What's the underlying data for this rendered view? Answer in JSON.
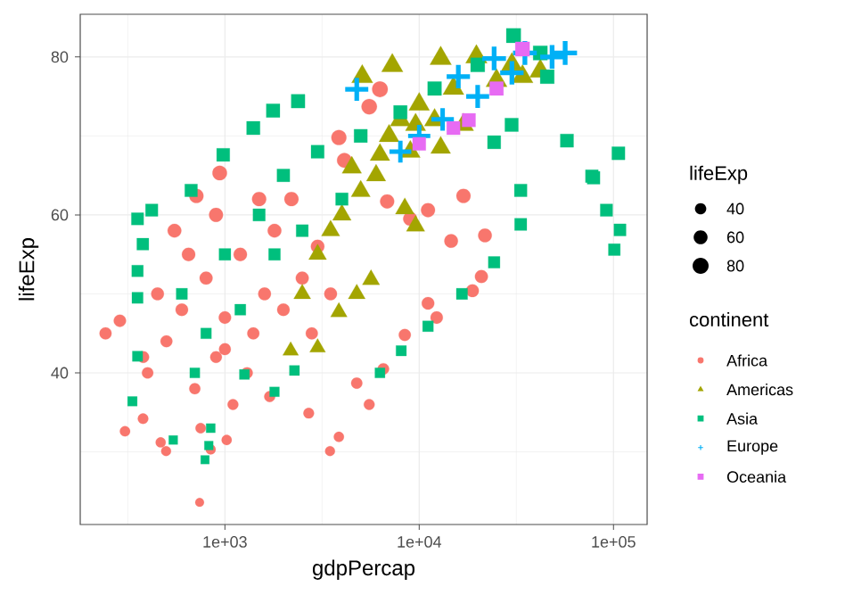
{
  "chart_data": {
    "type": "bubble",
    "xlabel": "gdpPercap",
    "ylabel": "lifeExp",
    "legend_title": "continent",
    "annotations": [
      "lifeExp"
    ],
    "log": "x",
    "grid": true,
    "legend": "right",
    "size_legend": [
      40,
      60,
      80
    ],
    "xlim": [
      180,
      149000
    ],
    "ylim": [
      20.8,
      85.4
    ],
    "xticks": [
      {
        "value": 1000,
        "label": "1e+03"
      },
      {
        "value": 10000,
        "label": "1e+04"
      },
      {
        "value": 100000,
        "label": "1e+05"
      }
    ],
    "yticks": [
      40,
      60,
      80
    ],
    "series": [
      {
        "name": "Africa",
        "color": "#f8766d",
        "marker": "circle",
        "x": [
          243,
          288,
          306,
          379,
          467,
          498,
          845,
          1021,
          2700,
          3475,
          3860,
          4770,
          5530,
          6540,
          8430,
          11100,
          12300,
          20900,
          18800,
          4120,
          3860,
          5530,
          6280,
          6840,
          8980,
          11100,
          16900,
          21800,
          14600,
          940,
          713,
          400,
          500,
          600,
          700,
          800,
          900,
          1000,
          1200,
          1400,
          1600,
          1800,
          2000,
          2500,
          3000,
          1100,
          650,
          450,
          550,
          1300,
          900,
          1500,
          2200,
          2800,
          3500,
          1700,
          750,
          1000,
          380,
          741
        ],
        "values": [
          45.0,
          46.6,
          32.6,
          34.2,
          31.2,
          30.1,
          30.3,
          31.5,
          34.9,
          30.1,
          31.9,
          38.7,
          36.0,
          40.5,
          44.8,
          48.8,
          47.0,
          52.2,
          50.4,
          66.9,
          69.8,
          73.7,
          75.9,
          61.7,
          59.5,
          60.6,
          62.4,
          57.4,
          56.7,
          65.3,
          62.4,
          40,
          44,
          48,
          38,
          52,
          42,
          47,
          55,
          45,
          50,
          58,
          48,
          52,
          56,
          36,
          55,
          50,
          58,
          40,
          60,
          62,
          62,
          45,
          50,
          37,
          33,
          43,
          42,
          23.6
        ],
        "sizes": [
          45.0,
          46.6,
          32.6,
          34.2,
          31.2,
          30.1,
          30.3,
          31.5,
          34.9,
          30.1,
          31.9,
          38.7,
          36.0,
          40.5,
          44.8,
          48.8,
          47.0,
          52.2,
          50.4,
          66.9,
          69.8,
          73.7,
          75.9,
          61.7,
          59.5,
          60.6,
          62.4,
          57.4,
          56.7,
          65.3,
          62.4,
          40,
          44,
          48,
          38,
          52,
          42,
          47,
          55,
          45,
          50,
          58,
          48,
          52,
          56,
          36,
          55,
          50,
          58,
          40,
          60,
          62,
          62,
          45,
          50,
          37,
          33,
          43,
          42,
          23.6
        ]
      },
      {
        "name": "Americas",
        "color": "#a3a500",
        "marker": "triangle",
        "x": [
          2180,
          3000,
          3860,
          4770,
          5650,
          8430,
          9580,
          6280,
          5090,
          7270,
          12900,
          19700,
          34000,
          42000,
          16900,
          12900,
          9580,
          3000,
          4000,
          5000,
          6000,
          7000,
          8000,
          10000,
          15000,
          25000,
          2500,
          3500,
          4500,
          9000,
          12000,
          30000
        ],
        "values": [
          42.8,
          43.2,
          47.7,
          50.0,
          51.8,
          60.8,
          58.6,
          67.6,
          77.5,
          78.9,
          79.8,
          80.0,
          77.5,
          78.2,
          71.4,
          68.5,
          71.4,
          55,
          60,
          63,
          65,
          70,
          72,
          74,
          76,
          77,
          50,
          58,
          66,
          68,
          72,
          79
        ],
        "sizes": [
          42.8,
          43.2,
          47.7,
          50.0,
          51.8,
          60.8,
          58.6,
          67.6,
          77.5,
          78.9,
          79.8,
          80.0,
          77.5,
          78.2,
          71.4,
          68.5,
          71.4,
          55,
          60,
          63,
          65,
          70,
          72,
          74,
          76,
          77,
          50,
          58,
          66,
          68,
          72,
          79
        ]
      },
      {
        "name": "Asia",
        "color": "#00bf7d",
        "marker": "square",
        "x": [
          355,
          420,
          378,
          355,
          355,
          355,
          334,
          790,
          826,
          845,
          542,
          1260,
          1800,
          2280,
          6280,
          8080,
          11100,
          16600,
          24300,
          33300,
          33300,
          57600,
          77400,
          106000,
          79000,
          92000,
          108000,
          101000,
          30600,
          42000,
          45600,
          29900,
          24300,
          2380,
          1770,
          1400,
          980,
          670,
          600,
          800,
          1000,
          1500,
          2000,
          3000,
          5000,
          8000,
          12000,
          20000,
          1200,
          2500,
          700,
          4000,
          1800
        ],
        "values": [
          59.5,
          60.6,
          56.3,
          52.9,
          49.5,
          42.1,
          36.4,
          29.0,
          30.8,
          33.0,
          31.5,
          39.8,
          37.6,
          40.3,
          40.0,
          42.8,
          45.9,
          50.0,
          54.0,
          63.1,
          58.8,
          69.4,
          64.9,
          67.8,
          64.7,
          60.6,
          58.1,
          55.6,
          82.7,
          80.5,
          77.5,
          71.4,
          69.2,
          74.4,
          73.2,
          71.0,
          67.6,
          63.1,
          50,
          45,
          55,
          60,
          65,
          68,
          70,
          73,
          76,
          79,
          48,
          58,
          40,
          62,
          55
        ],
        "sizes": [
          59.5,
          60.6,
          56.3,
          52.9,
          49.5,
          42.1,
          36.4,
          29.0,
          30.8,
          33.0,
          31.5,
          39.8,
          37.6,
          40.3,
          40.0,
          42.8,
          45.9,
          50.0,
          54.0,
          63.1,
          58.8,
          69.4,
          64.9,
          67.8,
          64.7,
          60.6,
          58.1,
          55.6,
          82.7,
          80.5,
          77.5,
          71.4,
          69.2,
          74.4,
          73.2,
          71.0,
          67.6,
          63.1,
          50,
          45,
          55,
          60,
          65,
          68,
          70,
          73,
          76,
          79,
          48,
          58,
          40,
          62,
          55
        ]
      },
      {
        "name": "Europe",
        "color": "#00b0f6",
        "marker": "cross",
        "x": [
          15900,
          13200,
          48300,
          4770,
          24300,
          56400,
          20000,
          30000,
          10000,
          8000,
          35000
        ],
        "values": [
          77.5,
          72.1,
          80.0,
          75.9,
          79.8,
          80.5,
          75,
          78,
          70,
          68,
          80.5
        ],
        "sizes": [
          77.5,
          72.1,
          80.0,
          75.9,
          79.8,
          80.5,
          75,
          78,
          70,
          68,
          80.5
        ]
      },
      {
        "name": "Oceania",
        "color": "#e76bf3",
        "marker": "square",
        "x": [
          10000,
          18000,
          25000,
          34000,
          15000
        ],
        "values": [
          69,
          72,
          76,
          81,
          71
        ],
        "sizes": [
          69,
          72,
          76,
          81,
          71
        ]
      }
    ]
  }
}
